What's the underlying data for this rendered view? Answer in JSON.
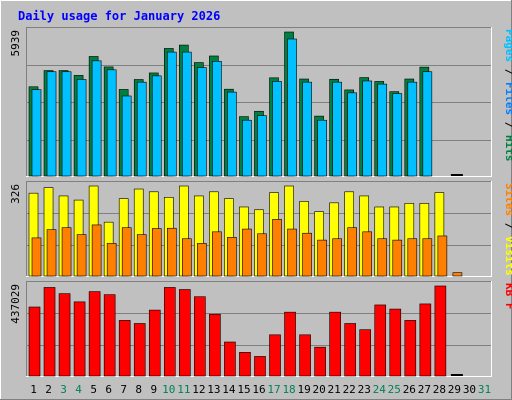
{
  "chart_data": {
    "type": "bar",
    "title": "Daily usage for January 2026",
    "categories": [
      "1",
      "2",
      "3",
      "4",
      "5",
      "6",
      "7",
      "8",
      "9",
      "10",
      "11",
      "12",
      "13",
      "14",
      "15",
      "16",
      "17",
      "18",
      "19",
      "20",
      "21",
      "22",
      "23",
      "24",
      "25",
      "26",
      "27",
      "28",
      "29",
      "30",
      "31"
    ],
    "weekend_days": [
      "3",
      "4",
      "10",
      "11",
      "17",
      "18",
      "24",
      "25",
      "31"
    ],
    "panels": [
      {
        "id": "hits",
        "ymax_label": "5939",
        "ylim": [
          0,
          5939
        ],
        "legend": [
          "Pages",
          "/",
          "Files",
          "/",
          "Hits"
        ],
        "series": [
          {
            "name": "Hits",
            "color": "#008040",
            "values": [
              3680,
              4350,
              4350,
              4150,
              4930,
              4500,
              3570,
              3980,
              4250,
              5260,
              5400,
              4680,
              4950,
              3580,
              2450,
              2670,
              4050,
              5939,
              4000,
              2470,
              3990,
              3550,
              4060,
              3900,
              3480,
              4000,
              4490,
              0,
              0,
              0,
              0
            ]
          },
          {
            "name": "Files",
            "color": "#0080ff",
            "values": [
              3560,
              4300,
              4300,
              3980,
              4750,
              4380,
              3300,
              3870,
              4130,
              5110,
              5110,
              4470,
              4730,
              3460,
              2300,
              2490,
              3900,
              5650,
              3870,
              2300,
              3870,
              3430,
              3920,
              3790,
              3400,
              3870,
              4300,
              0,
              0,
              0,
              0
            ]
          },
          {
            "name": "Pages",
            "color": "#00c0ff",
            "values": [
              3560,
              4300,
              4300,
              3980,
              4750,
              4380,
              3300,
              3870,
              4130,
              5110,
              5110,
              4470,
              4730,
              3460,
              2300,
              2490,
              3900,
              5650,
              3870,
              2300,
              3870,
              3430,
              3920,
              3790,
              3400,
              3870,
              4300,
              0,
              0,
              0,
              0
            ]
          }
        ]
      },
      {
        "id": "visits",
        "ymax_label": "326",
        "ylim": [
          0,
          326
        ],
        "legend": [
          "Sites",
          "/",
          "Visits"
        ],
        "series": [
          {
            "name": "Visits",
            "color": "#ffff00",
            "values": [
              300,
              320,
              290,
              275,
              326,
              195,
              280,
              315,
              305,
              285,
              326,
              290,
              305,
              280,
              250,
              240,
              302,
              326,
              270,
              233,
              265,
              305,
              290,
              250,
              250,
              263,
              263,
              302,
              0,
              0,
              0
            ]
          },
          {
            "name": "Sites",
            "color": "#ff8000",
            "values": [
              138,
              168,
              175,
              150,
              185,
              118,
              175,
              150,
              172,
              173,
              135,
              118,
              160,
              140,
              170,
              153,
              205,
              170,
              155,
              130,
              135,
              175,
              160,
              135,
              130,
              135,
              135,
              145,
              12,
              0,
              0
            ]
          }
        ]
      },
      {
        "id": "kbytes",
        "ymax_label": "437029",
        "ylim": [
          0,
          437029
        ],
        "legend": [
          "KB F"
        ],
        "series": [
          {
            "name": "KB F",
            "color": "#ff0000",
            "values": [
              335000,
              430000,
              400000,
              360000,
              410000,
              395000,
              270000,
              255000,
              320000,
              430000,
              420000,
              385000,
              300000,
              165000,
              115000,
              95000,
              200000,
              310000,
              200000,
              140000,
              310000,
              255000,
              225000,
              345000,
              325000,
              270000,
              350000,
              437029,
              0,
              0,
              0
            ]
          }
        ]
      }
    ]
  }
}
